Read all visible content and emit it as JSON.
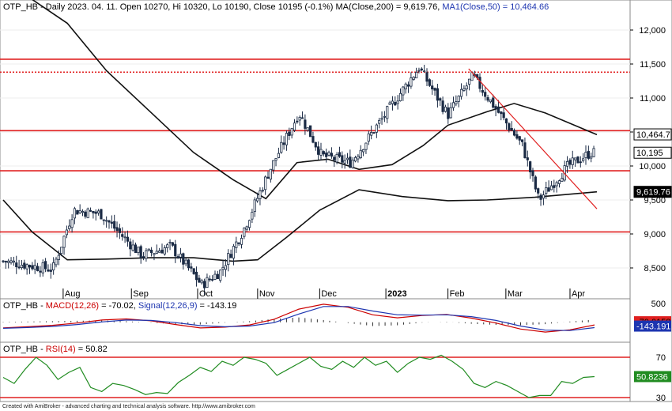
{
  "chart_data": [
    {
      "type": "candlestick",
      "title": "OTP_HB - Daily 2023. 04. 11. Open 10270, Hi 10320, Lo 10190, Close 10195 (-0.1%)",
      "legend": {
        "ma200_label": "MA(Close,200) = 9,619.76,",
        "ma50_label": "MA1(Close,50) = 10,464.66"
      },
      "y_ticks": [
        "12,000",
        "11,500",
        "11,000",
        "10,500",
        "10,000",
        "9,500",
        "9,000",
        "8,500"
      ],
      "x_ticks": [
        "Aug",
        "Sep",
        "Oct",
        "Nov",
        "Dec",
        "2023",
        "Feb",
        "Mar",
        "Apr"
      ],
      "ylim": [
        8200,
        12300
      ],
      "price_badges": [
        "10,464.7",
        "10,195",
        "9,619.76"
      ],
      "horizontal_levels": [
        11570,
        11380,
        10520,
        9930,
        9030
      ],
      "trendline": {
        "from_price": 11430,
        "to_price": 9370,
        "from_date": "2023-02-11",
        "to_date": "2023-04-14"
      },
      "ohlc_sample": [
        {
          "date": "2022-07-01",
          "close": 8600
        },
        {
          "date": "2022-07-25",
          "close": 8480
        },
        {
          "date": "2022-08-04",
          "close": 9350
        },
        {
          "date": "2022-08-17",
          "close": 9300
        },
        {
          "date": "2022-09-06",
          "close": 8680
        },
        {
          "date": "2022-09-20",
          "close": 8820
        },
        {
          "date": "2022-10-05",
          "close": 8250
        },
        {
          "date": "2022-10-14",
          "close": 8450
        },
        {
          "date": "2022-10-25",
          "close": 9050
        },
        {
          "date": "2022-11-07",
          "close": 9950
        },
        {
          "date": "2022-11-21",
          "close": 10780
        },
        {
          "date": "2022-12-02",
          "close": 10150
        },
        {
          "date": "2022-12-16",
          "close": 10050
        },
        {
          "date": "2023-01-05",
          "close": 10900
        },
        {
          "date": "2023-01-18",
          "close": 11450
        },
        {
          "date": "2023-02-01",
          "close": 10750
        },
        {
          "date": "2023-02-13",
          "close": 11320
        },
        {
          "date": "2023-02-24",
          "close": 10850
        },
        {
          "date": "2023-03-09",
          "close": 10300
        },
        {
          "date": "2023-03-17",
          "close": 9500
        },
        {
          "date": "2023-03-31",
          "close": 10000
        },
        {
          "date": "2023-04-11",
          "close": 10195
        }
      ]
    },
    {
      "type": "line",
      "title": "OTP_HB - MACD(12,26) = -70.02, Signal(12,26,9) = -143.19",
      "labels": {
        "prefix": "OTP_HB - ",
        "macd": "MACD(12,26)",
        "macd_value": " = -70.02, ",
        "signal": "Signal(12,26,9)",
        "signal_value": " = -143.19"
      },
      "y_ticks": [
        "500"
      ],
      "ylim": [
        -300,
        500
      ],
      "badges": [
        "-70.0158",
        "-143.191"
      ],
      "series": [
        {
          "name": "MACD(12,26)",
          "color": "#cc0000",
          "values": [
            -150,
            -120,
            -80,
            -20,
            60,
            90,
            40,
            -60,
            -150,
            -130,
            -70,
            80,
            350,
            480,
            400,
            200,
            120,
            180,
            210,
            110,
            -20,
            -180,
            -260,
            -200,
            -70
          ]
        },
        {
          "name": "Signal(12,26,9)",
          "color": "#1d35b0",
          "values": [
            -160,
            -140,
            -110,
            -60,
            10,
            60,
            50,
            -10,
            -90,
            -120,
            -100,
            -10,
            220,
            420,
            420,
            300,
            200,
            190,
            200,
            150,
            50,
            -100,
            -210,
            -220,
            -143
          ]
        }
      ]
    },
    {
      "type": "line",
      "title": "OTP_HB - RSI(14) = 50.82",
      "labels": {
        "prefix": "OTP_HB - ",
        "rsi": "RSI(14)",
        "rsi_value": " = 50.82"
      },
      "y_ticks": [
        "70",
        "30"
      ],
      "ylim": [
        25,
        80
      ],
      "levels": [
        70,
        30
      ],
      "badge": "50.8236",
      "series": [
        {
          "name": "RSI(14)",
          "color": "#218c21",
          "values": [
            50,
            44,
            58,
            70,
            62,
            48,
            55,
            60,
            40,
            36,
            44,
            42,
            38,
            33,
            35,
            34,
            45,
            52,
            60,
            56,
            66,
            62,
            70,
            68,
            64,
            52,
            58,
            64,
            70,
            61,
            58,
            66,
            60,
            70,
            62,
            66,
            55,
            64,
            70,
            68,
            72,
            66,
            58,
            44,
            40,
            46,
            42,
            36,
            30,
            32,
            32,
            46,
            44,
            50,
            50.82
          ]
        }
      ]
    }
  ],
  "footer": "Created with AmiBroker - advanced charting and technical analysis software. http://www.amibroker.com"
}
